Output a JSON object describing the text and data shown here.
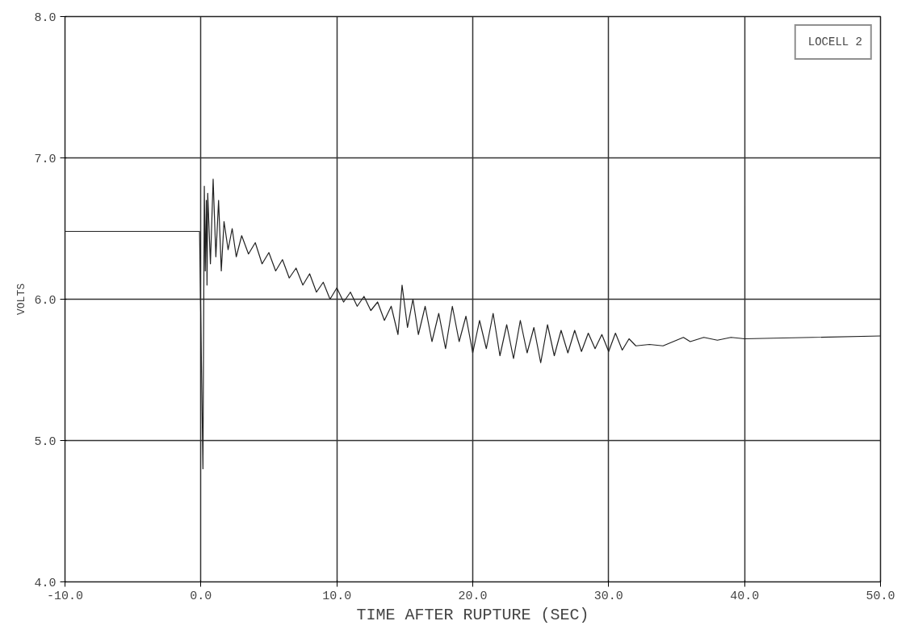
{
  "chart_data": {
    "type": "line",
    "xlabel": "TIME AFTER RUPTURE (SEC)",
    "ylabel": "VOLTS",
    "xlim": [
      -10,
      50
    ],
    "ylim": [
      4,
      8
    ],
    "xticks": [
      {
        "value": -10,
        "label": "-10.0"
      },
      {
        "value": 0,
        "label": "0.0"
      },
      {
        "value": 10,
        "label": "10.0"
      },
      {
        "value": 20,
        "label": "20.0"
      },
      {
        "value": 30,
        "label": "30.0"
      },
      {
        "value": 40,
        "label": "40.0"
      },
      {
        "value": 50,
        "label": "50.0"
      }
    ],
    "yticks": [
      {
        "value": 4,
        "label": "4.0"
      },
      {
        "value": 5,
        "label": "5.0"
      },
      {
        "value": 6,
        "label": "6.0"
      },
      {
        "value": 7,
        "label": "7.0"
      },
      {
        "value": 8,
        "label": "8.0"
      }
    ],
    "grid": true,
    "legend": "top right",
    "marker": "none",
    "line_style": "solid",
    "series": [
      {
        "name": "LOCELL 2",
        "color": "#222222",
        "x": [
          -10,
          -0.1,
          0.15,
          0.25,
          0.32,
          0.4,
          0.45,
          0.5,
          0.7,
          0.9,
          1.1,
          1.3,
          1.5,
          1.7,
          2.0,
          2.3,
          2.6,
          3,
          3.5,
          4,
          4.5,
          5,
          5.5,
          6,
          6.5,
          7,
          7.5,
          8,
          8.5,
          9,
          9.5,
          10,
          10.5,
          11,
          11.5,
          12,
          12.5,
          13,
          13.5,
          14,
          14.5,
          14.8,
          15.2,
          15.6,
          16,
          16.5,
          17,
          17.5,
          18,
          18.5,
          19,
          19.5,
          20,
          20.5,
          21,
          21.5,
          22,
          22.5,
          23,
          23.5,
          24,
          24.5,
          25,
          25.5,
          26,
          26.5,
          27,
          27.5,
          28,
          28.5,
          29,
          29.5,
          30,
          30.5,
          31,
          31.5,
          32,
          33,
          34,
          35,
          35.5,
          36,
          37,
          38,
          39,
          40,
          45,
          50
        ],
        "values": [
          6.48,
          6.48,
          4.8,
          6.8,
          6.2,
          6.7,
          6.1,
          6.75,
          6.25,
          6.85,
          6.3,
          6.7,
          6.2,
          6.55,
          6.35,
          6.5,
          6.3,
          6.45,
          6.32,
          6.4,
          6.25,
          6.33,
          6.2,
          6.28,
          6.15,
          6.22,
          6.1,
          6.18,
          6.05,
          6.12,
          6.0,
          6.08,
          5.98,
          6.05,
          5.95,
          6.02,
          5.92,
          5.98,
          5.85,
          5.95,
          5.75,
          6.1,
          5.8,
          6.0,
          5.75,
          5.95,
          5.7,
          5.9,
          5.65,
          5.95,
          5.7,
          5.88,
          5.62,
          5.85,
          5.65,
          5.9,
          5.6,
          5.82,
          5.58,
          5.85,
          5.62,
          5.8,
          5.55,
          5.82,
          5.6,
          5.78,
          5.62,
          5.78,
          5.63,
          5.76,
          5.65,
          5.75,
          5.63,
          5.76,
          5.64,
          5.72,
          5.67,
          5.68,
          5.67,
          5.71,
          5.73,
          5.7,
          5.73,
          5.71,
          5.73,
          5.72,
          5.73,
          5.74
        ]
      }
    ]
  }
}
